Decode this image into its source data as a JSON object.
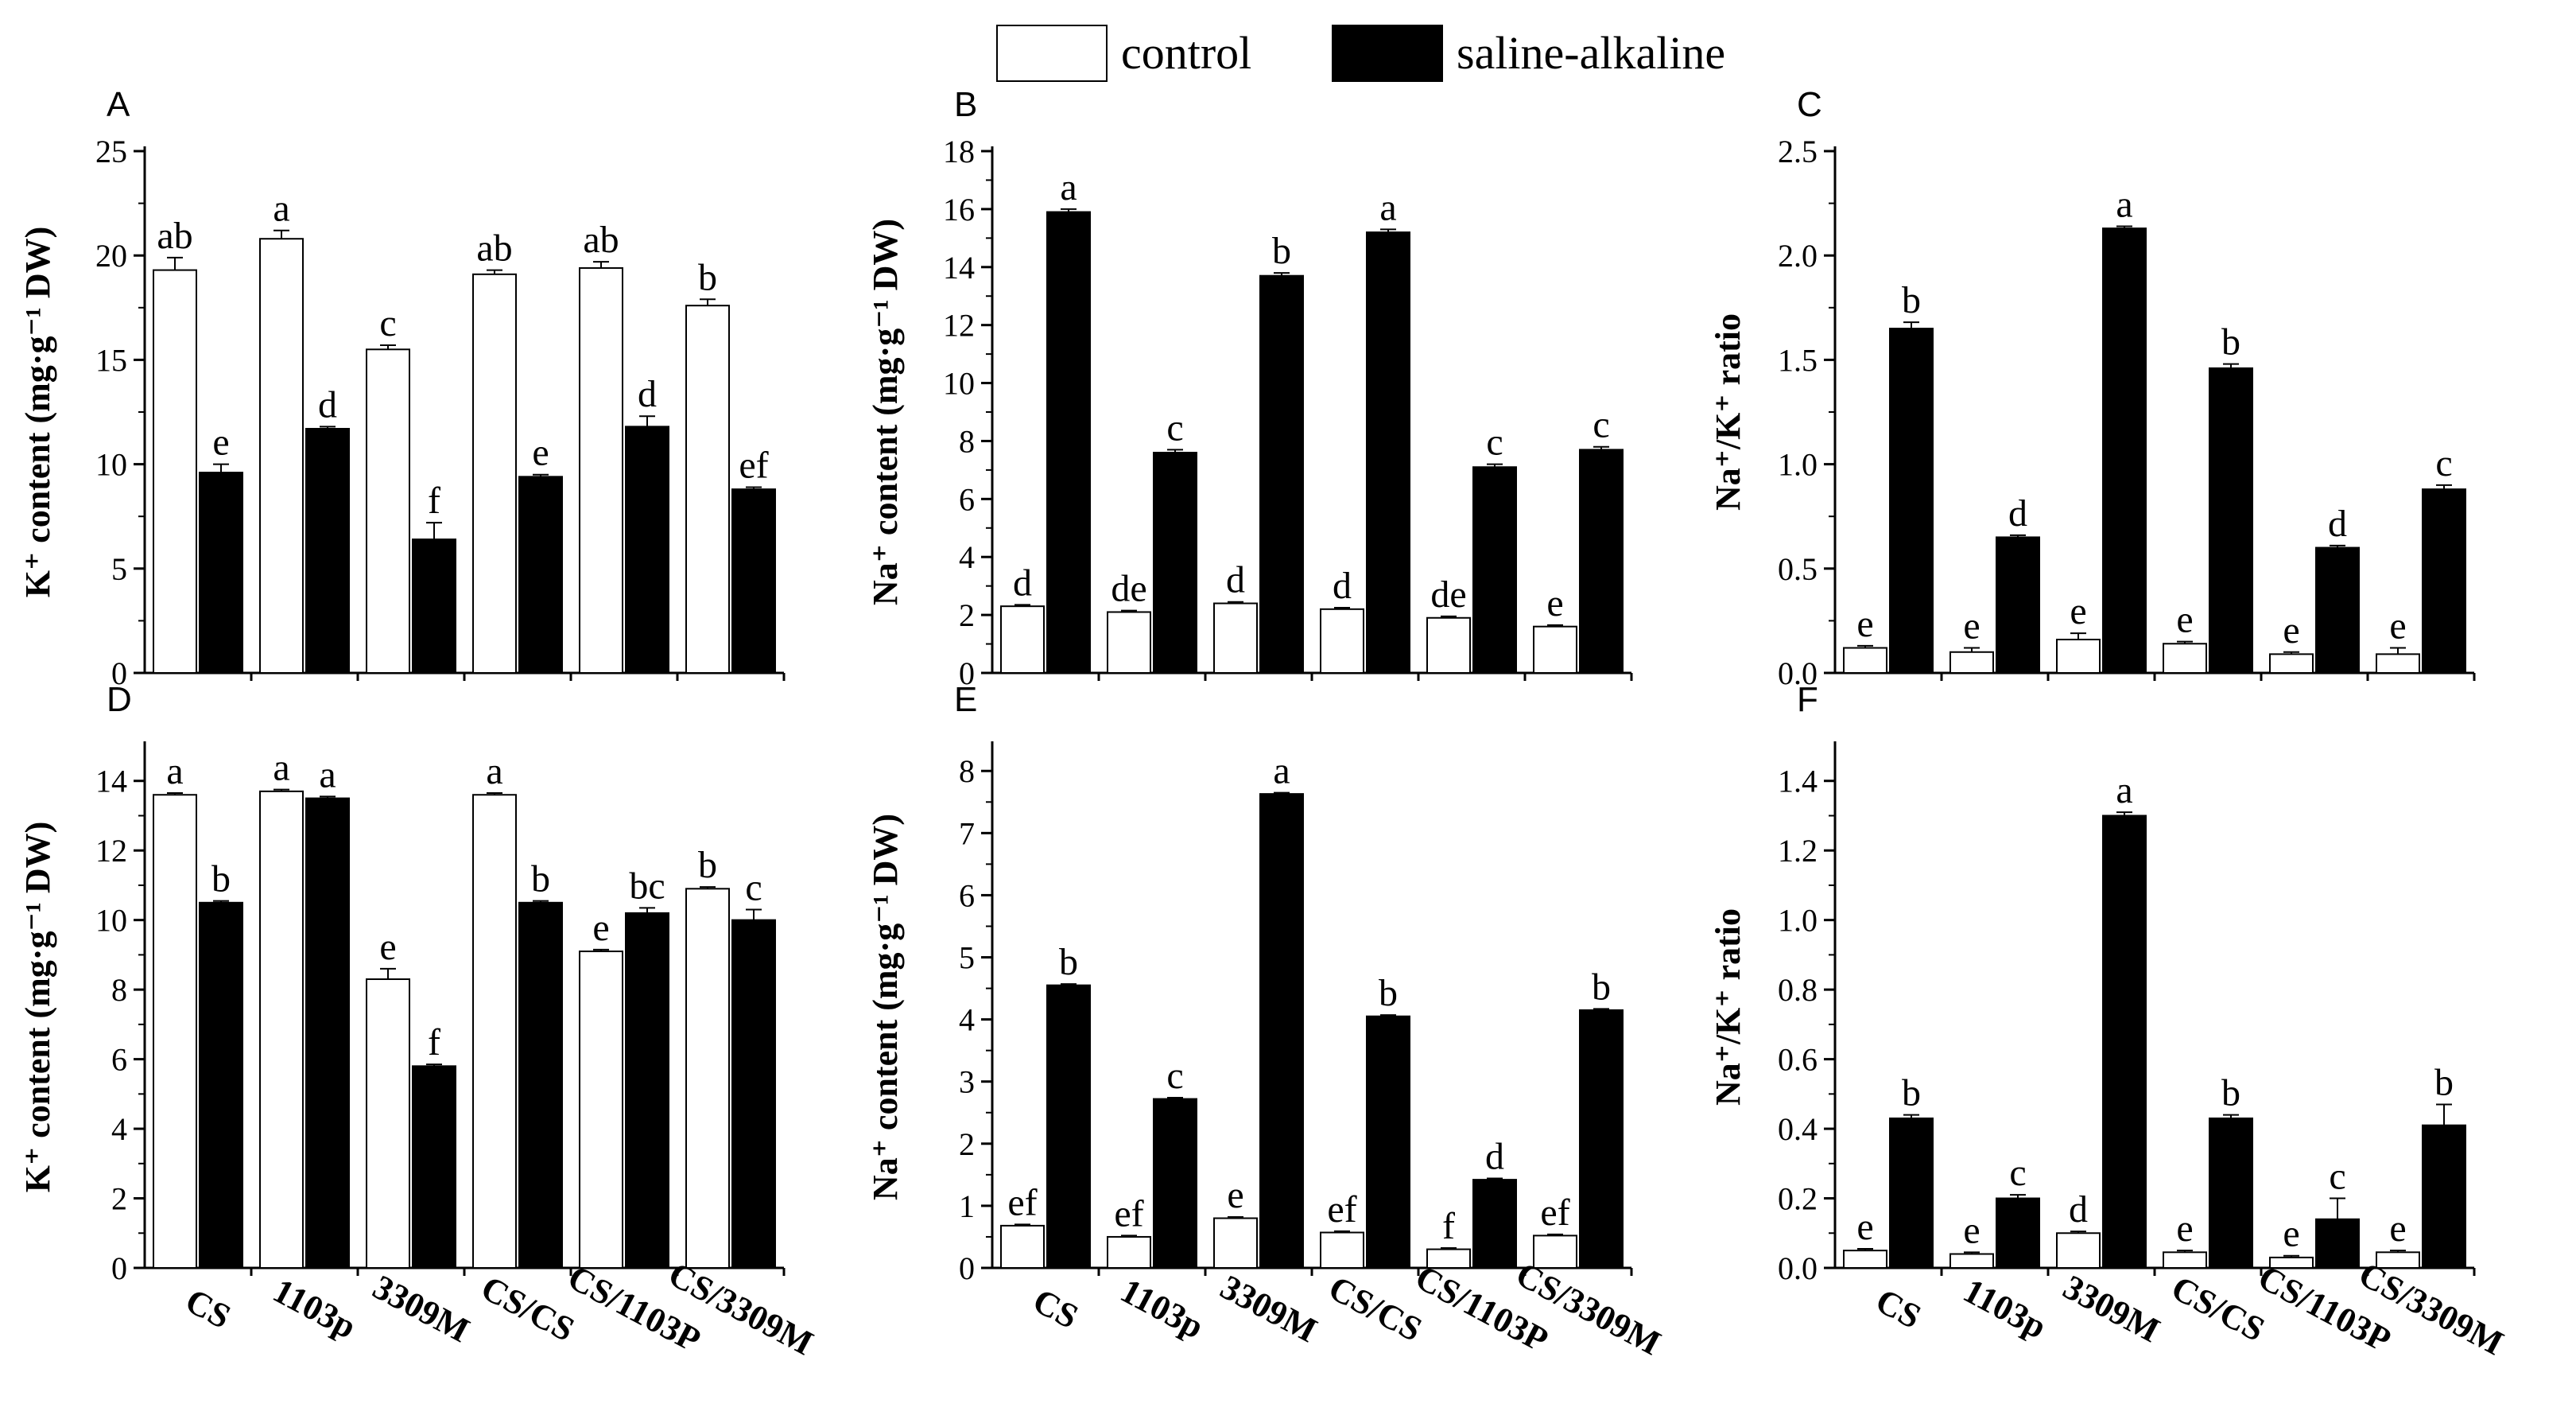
{
  "legend": {
    "control": "control",
    "treatment": "saline-alkaline"
  },
  "colors": {
    "control": "#ffffff",
    "treatment": "#000000",
    "axis": "#000000"
  },
  "chart_data": [
    {
      "type": "bar",
      "panel": "A",
      "ylabel": "K⁺ content (mg·g⁻¹ DW)",
      "ylim": [
        0,
        25
      ],
      "ticks": [
        0,
        5,
        10,
        15,
        20,
        25
      ],
      "tick_labels": [
        "0",
        "5",
        "10",
        "15",
        "20",
        "25"
      ],
      "categories": [
        "CS",
        "1103p",
        "3309M",
        "CS/CS",
        "CS/1103P",
        "CS/3309M"
      ],
      "show_categories": false,
      "series": [
        {
          "name": "control",
          "values": [
            19.3,
            20.8,
            15.5,
            19.1,
            19.4,
            17.6
          ],
          "errors": [
            0.6,
            0.4,
            0.2,
            0.2,
            0.3,
            0.3
          ],
          "labels": [
            "ab",
            "a",
            "c",
            "ab",
            "ab",
            "b"
          ]
        },
        {
          "name": "saline-alkaline",
          "values": [
            9.6,
            11.7,
            6.4,
            9.4,
            11.8,
            8.8
          ],
          "errors": [
            0.4,
            0.1,
            0.8,
            0.1,
            0.5,
            0.1
          ],
          "labels": [
            "e",
            "d",
            "f",
            "e",
            "d",
            "ef"
          ]
        }
      ]
    },
    {
      "type": "bar",
      "panel": "B",
      "ylabel": "Na⁺ content (mg·g⁻¹ DW)",
      "ylim": [
        0,
        18
      ],
      "ticks": [
        0,
        2,
        4,
        6,
        8,
        10,
        12,
        14,
        16,
        18
      ],
      "tick_labels": [
        "0",
        "2",
        "4",
        "6",
        "8",
        "10",
        "12",
        "14",
        "16",
        "18"
      ],
      "categories": [
        "CS",
        "1103p",
        "3309M",
        "CS/CS",
        "CS/1103P",
        "CS/3309M"
      ],
      "show_categories": false,
      "series": [
        {
          "name": "control",
          "values": [
            2.3,
            2.1,
            2.4,
            2.2,
            1.9,
            1.6
          ],
          "errors": [
            0.05,
            0.05,
            0.05,
            0.05,
            0.05,
            0.05
          ],
          "labels": [
            "d",
            "de",
            "d",
            "d",
            "de",
            "e"
          ]
        },
        {
          "name": "saline-alkaline",
          "values": [
            15.9,
            7.6,
            13.7,
            15.2,
            7.1,
            7.7
          ],
          "errors": [
            0.1,
            0.1,
            0.1,
            0.1,
            0.1,
            0.1
          ],
          "labels": [
            "a",
            "c",
            "b",
            "a",
            "c",
            "c"
          ]
        }
      ]
    },
    {
      "type": "bar",
      "panel": "C",
      "ylabel": "Na⁺/K⁺ ratio",
      "ylim": [
        0,
        2.5
      ],
      "ticks": [
        0,
        0.5,
        1.0,
        1.5,
        2.0,
        2.5
      ],
      "tick_labels": [
        "0.0",
        "0.5",
        "1.0",
        "1.5",
        "2.0",
        "2.5"
      ],
      "categories": [
        "CS",
        "1103p",
        "3309M",
        "CS/CS",
        "CS/1103P",
        "CS/3309M"
      ],
      "show_categories": false,
      "series": [
        {
          "name": "control",
          "values": [
            0.12,
            0.1,
            0.16,
            0.14,
            0.09,
            0.09
          ],
          "errors": [
            0.01,
            0.02,
            0.03,
            0.01,
            0.01,
            0.03
          ],
          "labels": [
            "e",
            "e",
            "e",
            "e",
            "e",
            "e"
          ]
        },
        {
          "name": "saline-alkaline",
          "values": [
            1.65,
            0.65,
            2.13,
            1.46,
            0.6,
            0.88
          ],
          "errors": [
            0.03,
            0.01,
            0.01,
            0.02,
            0.01,
            0.02
          ],
          "labels": [
            "b",
            "d",
            "a",
            "b",
            "d",
            "c"
          ]
        }
      ]
    },
    {
      "type": "bar",
      "panel": "D",
      "ylabel": "K⁺ content (mg·g⁻¹ DW)",
      "ylim": [
        0,
        15
      ],
      "ticks": [
        0,
        2,
        4,
        6,
        8,
        10,
        12,
        14
      ],
      "tick_labels": [
        "0",
        "2",
        "4",
        "6",
        "8",
        "10",
        "12",
        "14"
      ],
      "categories": [
        "CS",
        "1103p",
        "3309M",
        "CS/CS",
        "CS/1103P",
        "CS/3309M"
      ],
      "show_categories": true,
      "series": [
        {
          "name": "control",
          "values": [
            13.6,
            13.7,
            8.3,
            13.6,
            9.1,
            10.9
          ],
          "errors": [
            0.05,
            0.05,
            0.3,
            0.05,
            0.05,
            0.05
          ],
          "labels": [
            "a",
            "a",
            "e",
            "a",
            "e",
            "b"
          ]
        },
        {
          "name": "saline-alkaline",
          "values": [
            10.5,
            13.5,
            5.8,
            10.5,
            10.2,
            10.0
          ],
          "errors": [
            0.05,
            0.05,
            0.05,
            0.05,
            0.15,
            0.3
          ],
          "labels": [
            "b",
            "a",
            "f",
            "b",
            "bc",
            "c"
          ]
        }
      ]
    },
    {
      "type": "bar",
      "panel": "E",
      "ylabel": "Na⁺ content (mg·g⁻¹ DW)",
      "ylim": [
        0,
        8.4
      ],
      "ticks": [
        0,
        1,
        2,
        3,
        4,
        5,
        6,
        7,
        8
      ],
      "tick_labels": [
        "0",
        "1",
        "2",
        "3",
        "4",
        "5",
        "6",
        "7",
        "8"
      ],
      "categories": [
        "CS",
        "1103p",
        "3309M",
        "CS/CS",
        "CS/1103P",
        "CS/3309M"
      ],
      "show_categories": true,
      "series": [
        {
          "name": "control",
          "values": [
            0.68,
            0.5,
            0.8,
            0.57,
            0.3,
            0.52
          ],
          "errors": [
            0.02,
            0.02,
            0.02,
            0.02,
            0.02,
            0.02
          ],
          "labels": [
            "ef",
            "ef",
            "e",
            "ef",
            "f",
            "ef"
          ]
        },
        {
          "name": "saline-alkaline",
          "values": [
            4.55,
            2.72,
            7.63,
            4.05,
            1.42,
            4.15
          ],
          "errors": [
            0.02,
            0.02,
            0.02,
            0.02,
            0.02,
            0.02
          ],
          "labels": [
            "b",
            "c",
            "a",
            "b",
            "d",
            "b"
          ]
        }
      ]
    },
    {
      "type": "bar",
      "panel": "F",
      "ylabel": "Na⁺/K⁺ ratio",
      "ylim": [
        0,
        1.5
      ],
      "ticks": [
        0,
        0.2,
        0.4,
        0.6,
        0.8,
        1.0,
        1.2,
        1.4
      ],
      "tick_labels": [
        "0.0",
        "0.2",
        "0.4",
        "0.6",
        "0.8",
        "1.0",
        "1.2",
        "1.4"
      ],
      "categories": [
        "CS",
        "1103p",
        "3309M",
        "CS/CS",
        "CS/1103P",
        "CS/3309M"
      ],
      "show_categories": true,
      "series": [
        {
          "name": "control",
          "values": [
            0.05,
            0.04,
            0.1,
            0.045,
            0.03,
            0.045
          ],
          "errors": [
            0.005,
            0.005,
            0.005,
            0.005,
            0.005,
            0.005
          ],
          "labels": [
            "e",
            "e",
            "d",
            "e",
            "e",
            "e"
          ]
        },
        {
          "name": "saline-alkaline",
          "values": [
            0.43,
            0.2,
            1.3,
            0.43,
            0.14,
            0.41
          ],
          "errors": [
            0.01,
            0.01,
            0.01,
            0.01,
            0.06,
            0.06
          ],
          "labels": [
            "b",
            "c",
            "a",
            "b",
            "c",
            "b"
          ]
        }
      ]
    }
  ]
}
